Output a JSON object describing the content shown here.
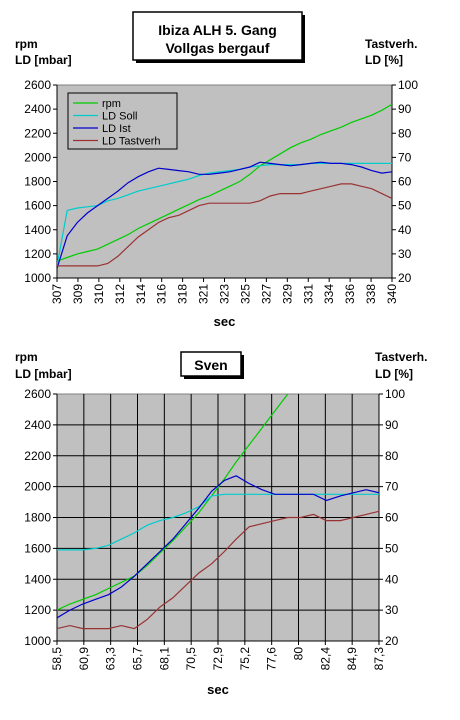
{
  "chart_data": [
    {
      "type": "line",
      "title_lines": [
        "Ibiza   ALH 5. Gang",
        "Vollgas bergauf"
      ],
      "ylabel_left_lines": [
        "rpm",
        "LD [mbar]"
      ],
      "ylabel_right_lines": [
        "Tastverh.",
        "LD [%]"
      ],
      "xlabel": "sec",
      "ylim_left": [
        1000,
        2600
      ],
      "ylim_right": [
        20,
        100
      ],
      "yticks_left": [
        "1000",
        "1200",
        "1400",
        "1600",
        "1800",
        "2000",
        "2200",
        "2400",
        "2600"
      ],
      "yticks_right": [
        "20",
        "30",
        "40",
        "50",
        "60",
        "70",
        "80",
        "90",
        "100"
      ],
      "xlim": [
        307,
        340
      ],
      "xticks": [
        "307",
        "309",
        "310",
        "312",
        "314",
        "316",
        "318",
        "321",
        "323",
        "325",
        "327",
        "329",
        "331",
        "334",
        "336",
        "338",
        "340"
      ],
      "grid": false,
      "legend": "top-left",
      "series": [
        {
          "name": "rpm",
          "color": "#00cc00",
          "axis": "left",
          "x": [
            307,
            308,
            309,
            310,
            311,
            312,
            313,
            314,
            315,
            316,
            317,
            318,
            319,
            320,
            321,
            322,
            323,
            324,
            325,
            326,
            327,
            328,
            329,
            330,
            331,
            332,
            333,
            334,
            335,
            336,
            337,
            338,
            339,
            340
          ],
          "y": [
            1140,
            1170,
            1200,
            1220,
            1240,
            1280,
            1320,
            1360,
            1410,
            1450,
            1490,
            1530,
            1570,
            1610,
            1650,
            1680,
            1720,
            1760,
            1800,
            1860,
            1930,
            1980,
            2030,
            2080,
            2120,
            2150,
            2190,
            2220,
            2250,
            2290,
            2320,
            2350,
            2390,
            2440
          ]
        },
        {
          "name": "LD Soll",
          "color": "#00cccc",
          "axis": "left",
          "x": [
            307,
            308,
            309,
            310,
            311,
            312,
            313,
            314,
            315,
            316,
            317,
            318,
            319,
            320,
            321,
            322,
            323,
            324,
            325,
            326,
            327,
            328,
            329,
            330,
            331,
            332,
            333,
            334,
            335,
            336,
            337,
            338,
            339,
            340
          ],
          "y": [
            1100,
            1560,
            1580,
            1590,
            1600,
            1640,
            1660,
            1690,
            1720,
            1740,
            1760,
            1780,
            1800,
            1820,
            1850,
            1870,
            1880,
            1890,
            1900,
            1920,
            1930,
            1940,
            1940,
            1940,
            1940,
            1950,
            1950,
            1950,
            1950,
            1950,
            1950,
            1950,
            1950,
            1950
          ]
        },
        {
          "name": "LD Ist",
          "color": "#0000cc",
          "axis": "left",
          "x": [
            307,
            308,
            309,
            310,
            311,
            312,
            313,
            314,
            315,
            316,
            317,
            318,
            319,
            320,
            321,
            322,
            323,
            324,
            325,
            326,
            327,
            328,
            329,
            330,
            331,
            332,
            333,
            334,
            335,
            336,
            337,
            338,
            339,
            340
          ],
          "y": [
            1080,
            1350,
            1460,
            1540,
            1600,
            1660,
            1720,
            1790,
            1840,
            1880,
            1910,
            1900,
            1890,
            1880,
            1860,
            1860,
            1870,
            1880,
            1900,
            1920,
            1960,
            1950,
            1940,
            1930,
            1940,
            1950,
            1960,
            1950,
            1950,
            1940,
            1920,
            1890,
            1870,
            1880
          ]
        },
        {
          "name": "LD Tastverh",
          "color": "#993333",
          "axis": "right",
          "x": [
            307,
            308,
            309,
            310,
            311,
            312,
            313,
            314,
            315,
            316,
            317,
            318,
            319,
            320,
            321,
            322,
            323,
            324,
            325,
            326,
            327,
            328,
            329,
            330,
            331,
            332,
            333,
            334,
            335,
            336,
            337,
            338,
            339,
            340
          ],
          "y": [
            25,
            25,
            25,
            25,
            25,
            26,
            29,
            33,
            37,
            40,
            43,
            45,
            46,
            48,
            50,
            51,
            51,
            51,
            51,
            51,
            52,
            54,
            55,
            55,
            55,
            56,
            57,
            58,
            59,
            59,
            58,
            57,
            55,
            53
          ]
        }
      ]
    },
    {
      "type": "line",
      "title_lines": [
        "Sven"
      ],
      "ylabel_left_lines": [
        "rpm",
        "LD [mbar]"
      ],
      "ylabel_right_lines": [
        "Tastverh.",
        "LD [%]"
      ],
      "xlabel": "sec",
      "ylim_left": [
        1000,
        2600
      ],
      "ylim_right": [
        20,
        100
      ],
      "yticks_left": [
        "1000",
        "1200",
        "1400",
        "1600",
        "1800",
        "2000",
        "2200",
        "2400",
        "2600"
      ],
      "yticks_right": [
        "20",
        "30",
        "40",
        "50",
        "60",
        "70",
        "80",
        "90",
        "100"
      ],
      "xlim": [
        58.5,
        88.5
      ],
      "xticks": [
        "58,5",
        "60,9",
        "63,3",
        "65,7",
        "68,1",
        "70,5",
        "72,9",
        "75,2",
        "77,6",
        "80",
        "82,4",
        "84,9",
        "87,3"
      ],
      "grid": true,
      "legend": "none",
      "series": [
        {
          "color": "#00cc00",
          "axis": "left",
          "x": [
            58.5,
            59.7,
            60.9,
            62.1,
            63.3,
            64.5,
            65.7,
            66.9,
            68.1,
            69.3,
            70.5,
            71.7,
            72.9,
            74.1,
            75.2,
            76.4,
            77.6,
            78.8,
            80.0,
            81.2
          ],
          "y": [
            1200,
            1240,
            1270,
            1300,
            1340,
            1380,
            1420,
            1490,
            1570,
            1650,
            1740,
            1830,
            1940,
            2050,
            2160,
            2270,
            2380,
            2490,
            2600,
            2700
          ]
        },
        {
          "color": "#00cccc",
          "axis": "left",
          "x": [
            58.5,
            59.7,
            60.9,
            62.1,
            63.3,
            64.5,
            65.7,
            66.9,
            68.1,
            69.3,
            70.5,
            71.7,
            72.9,
            74.1,
            75.2,
            76.4,
            77.6,
            78.8,
            80.0,
            81.2,
            82.4,
            83.6,
            84.9,
            86.1,
            87.3,
            88.5
          ],
          "y": [
            1590,
            1590,
            1590,
            1600,
            1620,
            1660,
            1700,
            1750,
            1780,
            1800,
            1830,
            1870,
            1940,
            1950,
            1950,
            1950,
            1950,
            1950,
            1950,
            1950,
            1950,
            1950,
            1950,
            1950,
            1950,
            1950
          ]
        },
        {
          "color": "#0000cc",
          "axis": "left",
          "x": [
            58.5,
            59.7,
            60.9,
            62.1,
            63.3,
            64.5,
            65.7,
            66.9,
            68.1,
            69.3,
            70.5,
            71.7,
            72.9,
            74.1,
            75.2,
            76.4,
            77.6,
            78.8,
            80.0,
            81.2,
            82.4,
            83.6,
            84.9,
            86.1,
            87.3,
            88.5
          ],
          "y": [
            1150,
            1200,
            1240,
            1270,
            1300,
            1350,
            1420,
            1500,
            1580,
            1660,
            1760,
            1860,
            1970,
            2040,
            2070,
            2020,
            1980,
            1950,
            1950,
            1950,
            1950,
            1910,
            1940,
            1960,
            1980,
            1960
          ]
        },
        {
          "color": "#993333",
          "axis": "right",
          "x": [
            58.5,
            59.7,
            60.9,
            62.1,
            63.3,
            64.5,
            65.7,
            66.9,
            68.1,
            69.3,
            70.5,
            71.7,
            72.9,
            74.1,
            75.2,
            76.4,
            77.6,
            78.8,
            80.0,
            81.2,
            82.4,
            83.6,
            84.9,
            86.1,
            87.3,
            88.5
          ],
          "y": [
            24,
            25,
            24,
            24,
            24,
            25,
            24,
            27,
            31,
            34,
            38,
            42,
            45,
            49,
            53,
            57,
            58,
            59,
            60,
            60,
            61,
            59,
            59,
            60,
            61,
            62
          ]
        }
      ]
    }
  ]
}
